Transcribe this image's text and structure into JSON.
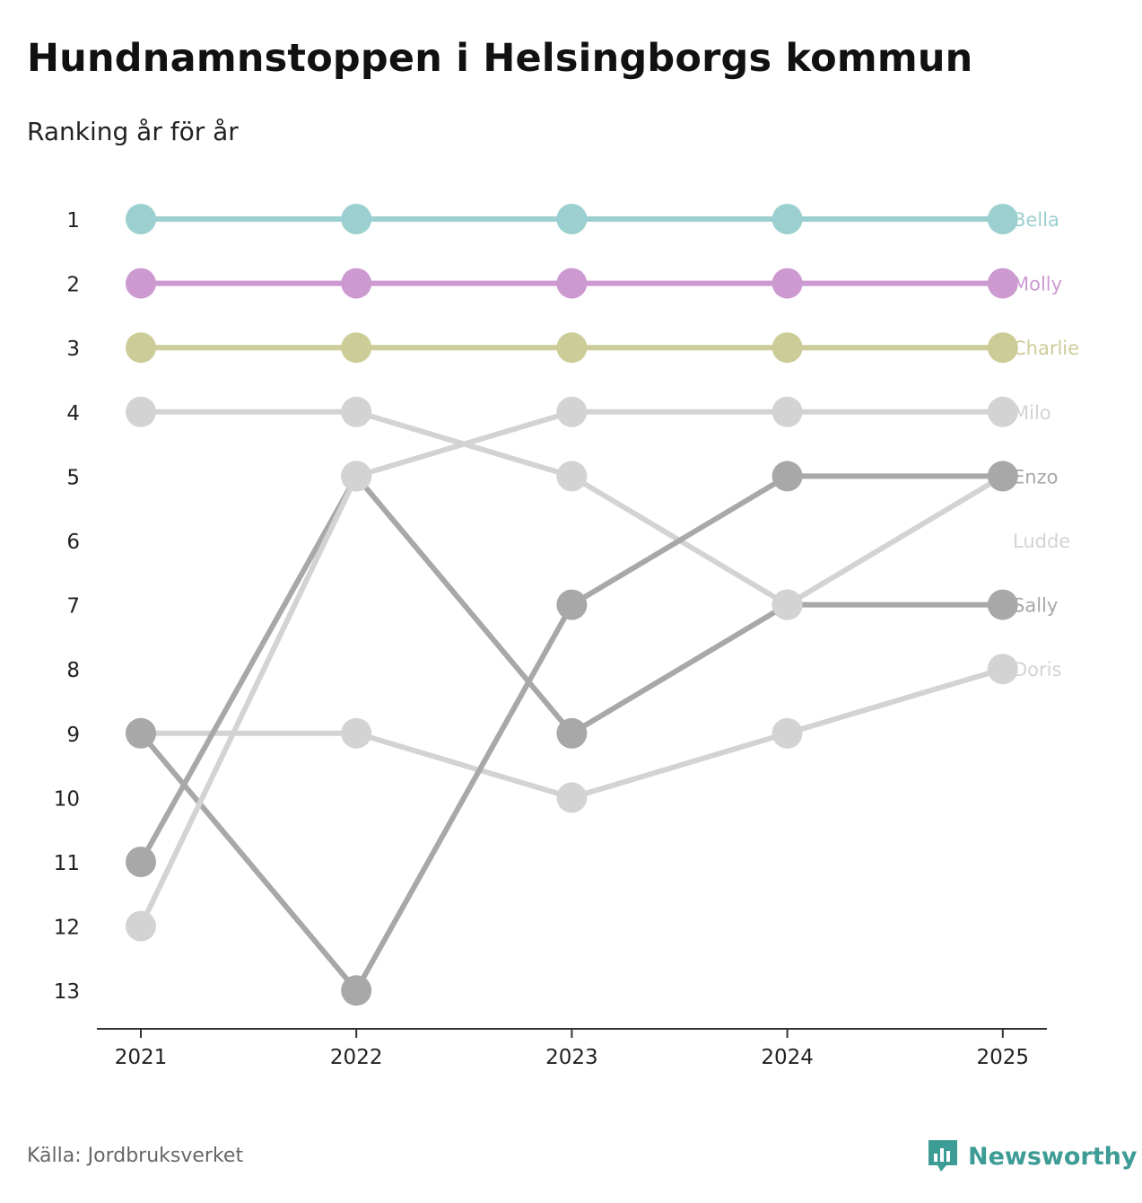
{
  "title": "Hundnamnstoppen i Helsingborgs kommun",
  "subtitle": "Ranking år för år",
  "source": "Källa: Jordbruksverket",
  "brand": "Newsworthy",
  "brand_icon": "newsworthy-logo-icon",
  "colors": {
    "accent": "#3d9c95",
    "axis": "#333333"
  },
  "chart_data": {
    "type": "line",
    "subtype": "bump",
    "title": "Hundnamnstoppen i Helsingborgs kommun",
    "subtitle": "Ranking år för år",
    "x": [
      "2021",
      "2022",
      "2023",
      "2024",
      "2025"
    ],
    "y_ticks": [
      "1",
      "2",
      "3",
      "4",
      "5",
      "6",
      "7",
      "8",
      "9",
      "10",
      "11",
      "12",
      "13"
    ],
    "ylim": [
      1,
      13
    ],
    "y_inverted": true,
    "xlabel": "",
    "ylabel": "",
    "series": [
      {
        "name": "Bella",
        "color": "#9ccfcf",
        "values": [
          1,
          1,
          1,
          1,
          1
        ]
      },
      {
        "name": "Molly",
        "color": "#cc9ad0",
        "values": [
          2,
          2,
          2,
          2,
          2
        ]
      },
      {
        "name": "Charlie",
        "color": "#cccc98",
        "values": [
          3,
          3,
          3,
          3,
          3
        ]
      },
      {
        "name": "Milo",
        "color": "#d3d3d3",
        "values": [
          12,
          5,
          4,
          4,
          4
        ]
      },
      {
        "name": "Enzo",
        "color": "#a8a8a8",
        "values": [
          9,
          13,
          7,
          5,
          5
        ]
      },
      {
        "name": "Ludde",
        "color": "#d3d3d3",
        "values": [
          4,
          4,
          5,
          7,
          5
        ]
      },
      {
        "name": "Sally",
        "color": "#a8a8a8",
        "values": [
          11,
          5,
          9,
          7,
          7
        ]
      },
      {
        "name": "Doris",
        "color": "#d3d3d3",
        "values": [
          9,
          9,
          10,
          9,
          8
        ]
      }
    ]
  }
}
